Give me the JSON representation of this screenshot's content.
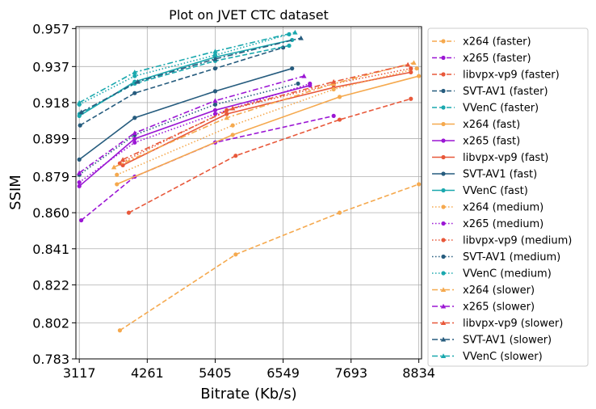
{
  "chart_data": {
    "type": "line",
    "title": "Plot on JVET CTC dataset",
    "xlabel": "Bitrate (Kb/s)",
    "ylabel": "SSIM",
    "xlim": [
      3060,
      8880
    ],
    "ylim": [
      0.783,
      0.958
    ],
    "xticks": [
      3117,
      4261,
      5405,
      6549,
      7693,
      8834
    ],
    "yticks": [
      0.783,
      0.802,
      0.822,
      0.841,
      0.86,
      0.879,
      0.899,
      0.918,
      0.937,
      0.957
    ],
    "ytick_labels": [
      "0.783",
      "0.802",
      "0.822",
      "0.841",
      "0.860",
      "0.879",
      "0.899",
      "0.918",
      "0.937",
      "0.957"
    ],
    "grid": true,
    "legend_position": "outside-right",
    "series": [
      {
        "name": "x264 (faster)",
        "color": "#f5a94e",
        "dash": "dashed",
        "marker": "circle",
        "points": [
          [
            3800,
            0.798
          ],
          [
            5750,
            0.838
          ],
          [
            7500,
            0.86
          ],
          [
            8834,
            0.875
          ]
        ]
      },
      {
        "name": "x265 (faster)",
        "color": "#9b16d4",
        "dash": "dashed",
        "marker": "circle",
        "points": [
          [
            3150,
            0.856
          ],
          [
            4050,
            0.879
          ],
          [
            5405,
            0.897
          ],
          [
            7400,
            0.911
          ]
        ]
      },
      {
        "name": "libvpx-vp9 (faster)",
        "color": "#e8583a",
        "dash": "dashed",
        "marker": "circle",
        "points": [
          [
            3950,
            0.86
          ],
          [
            5750,
            0.89
          ],
          [
            7500,
            0.909
          ],
          [
            8700,
            0.92
          ]
        ]
      },
      {
        "name": "SVT-AV1 (faster)",
        "color": "#265c7e",
        "dash": "dashed",
        "marker": "circle",
        "points": [
          [
            3130,
            0.906
          ],
          [
            4050,
            0.923
          ],
          [
            5405,
            0.936
          ],
          [
            6549,
            0.947
          ]
        ]
      },
      {
        "name": "VVenC (faster)",
        "color": "#1aa8ae",
        "dash": "dashed",
        "marker": "circle",
        "points": [
          [
            3120,
            0.912
          ],
          [
            4050,
            0.928
          ],
          [
            5405,
            0.94
          ],
          [
            6650,
            0.948
          ]
        ]
      },
      {
        "name": "x264 (fast)",
        "color": "#f5a94e",
        "dash": "solid",
        "marker": "circle",
        "points": [
          [
            3750,
            0.875
          ],
          [
            5700,
            0.901
          ],
          [
            7500,
            0.921
          ],
          [
            8834,
            0.932
          ]
        ]
      },
      {
        "name": "x265 (fast)",
        "color": "#9b16d4",
        "dash": "solid",
        "marker": "circle",
        "points": [
          [
            3117,
            0.874
          ],
          [
            4050,
            0.899
          ],
          [
            5405,
            0.914
          ],
          [
            7000,
            0.927
          ]
        ]
      },
      {
        "name": "libvpx-vp9 (fast)",
        "color": "#e8583a",
        "dash": "solid",
        "marker": "circle",
        "points": [
          [
            3850,
            0.885
          ],
          [
            5600,
            0.912
          ],
          [
            7400,
            0.926
          ],
          [
            8700,
            0.934
          ]
        ]
      },
      {
        "name": "SVT-AV1 (fast)",
        "color": "#265c7e",
        "dash": "solid",
        "marker": "circle",
        "points": [
          [
            3117,
            0.888
          ],
          [
            4050,
            0.91
          ],
          [
            5405,
            0.924
          ],
          [
            6700,
            0.936
          ]
        ]
      },
      {
        "name": "VVenC (fast)",
        "color": "#1aa8ae",
        "dash": "solid",
        "marker": "circle",
        "points": [
          [
            3117,
            0.911
          ],
          [
            4050,
            0.929
          ],
          [
            5405,
            0.942
          ],
          [
            6700,
            0.951
          ]
        ]
      },
      {
        "name": "x264 (medium)",
        "color": "#f5a94e",
        "dash": "dotted",
        "marker": "circle",
        "points": [
          [
            3750,
            0.88
          ],
          [
            5700,
            0.906
          ],
          [
            7400,
            0.925
          ],
          [
            8800,
            0.936
          ]
        ]
      },
      {
        "name": "x265 (medium)",
        "color": "#9b16d4",
        "dash": "dotted",
        "marker": "circle",
        "points": [
          [
            3117,
            0.876
          ],
          [
            4050,
            0.897
          ],
          [
            5405,
            0.912
          ],
          [
            7000,
            0.928
          ]
        ]
      },
      {
        "name": "libvpx-vp9 (medium)",
        "color": "#e8583a",
        "dash": "dotted",
        "marker": "circle",
        "points": [
          [
            3800,
            0.886
          ],
          [
            5600,
            0.914
          ],
          [
            7400,
            0.928
          ],
          [
            8700,
            0.936
          ]
        ]
      },
      {
        "name": "SVT-AV1 (medium)",
        "color": "#265c7e",
        "dash": "dotted",
        "marker": "circle",
        "points": [
          [
            3117,
            0.88
          ],
          [
            4050,
            0.901
          ],
          [
            5405,
            0.917
          ],
          [
            6800,
            0.928
          ]
        ]
      },
      {
        "name": "VVenC (medium)",
        "color": "#1aa8ae",
        "dash": "dotted",
        "marker": "circle",
        "points": [
          [
            3117,
            0.917
          ],
          [
            4050,
            0.932
          ],
          [
            5405,
            0.943
          ],
          [
            6650,
            0.954
          ]
        ]
      },
      {
        "name": "x264 (slower)",
        "color": "#f5a94e",
        "dash": "dashdot",
        "marker": "triangle",
        "points": [
          [
            3700,
            0.884
          ],
          [
            5600,
            0.91
          ],
          [
            7400,
            0.928
          ],
          [
            8750,
            0.939
          ]
        ]
      },
      {
        "name": "x265 (slower)",
        "color": "#9b16d4",
        "dash": "dashdot",
        "marker": "triangle",
        "points": [
          [
            3117,
            0.881
          ],
          [
            4050,
            0.902
          ],
          [
            5405,
            0.919
          ],
          [
            6900,
            0.932
          ]
        ]
      },
      {
        "name": "libvpx-vp9 (slower)",
        "color": "#e8583a",
        "dash": "dashdot",
        "marker": "triangle",
        "points": [
          [
            3850,
            0.888
          ],
          [
            5700,
            0.915
          ],
          [
            7400,
            0.929
          ],
          [
            8650,
            0.938
          ]
        ]
      },
      {
        "name": "SVT-AV1 (slower)",
        "color": "#265c7e",
        "dash": "dashdot",
        "marker": "triangle",
        "points": [
          [
            3150,
            0.913
          ],
          [
            4100,
            0.929
          ],
          [
            5405,
            0.941
          ],
          [
            6850,
            0.952
          ]
        ]
      },
      {
        "name": "VVenC (slower)",
        "color": "#1aa8ae",
        "dash": "dashdot",
        "marker": "triangle",
        "points": [
          [
            3117,
            0.918
          ],
          [
            4050,
            0.934
          ],
          [
            5405,
            0.945
          ],
          [
            6750,
            0.955
          ]
        ]
      }
    ]
  }
}
